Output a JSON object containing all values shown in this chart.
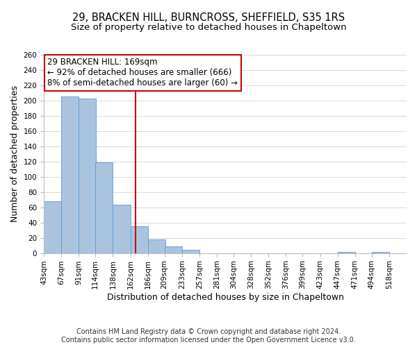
{
  "title": "29, BRACKEN HILL, BURNCROSS, SHEFFIELD, S35 1RS",
  "subtitle": "Size of property relative to detached houses in Chapeltown",
  "xlabel": "Distribution of detached houses by size in Chapeltown",
  "ylabel": "Number of detached properties",
  "bin_labels": [
    "43sqm",
    "67sqm",
    "91sqm",
    "114sqm",
    "138sqm",
    "162sqm",
    "186sqm",
    "209sqm",
    "233sqm",
    "257sqm",
    "281sqm",
    "304sqm",
    "328sqm",
    "352sqm",
    "376sqm",
    "399sqm",
    "423sqm",
    "447sqm",
    "471sqm",
    "494sqm",
    "518sqm"
  ],
  "bin_edges": [
    43,
    67,
    91,
    114,
    138,
    162,
    186,
    209,
    233,
    257,
    281,
    304,
    328,
    352,
    376,
    399,
    423,
    447,
    471,
    494,
    518
  ],
  "bar_heights": [
    68,
    205,
    203,
    119,
    63,
    35,
    18,
    9,
    4,
    0,
    0,
    0,
    0,
    0,
    0,
    0,
    0,
    1,
    0,
    1
  ],
  "bar_color": "#aac4e0",
  "bar_edge_color": "#5b9bd5",
  "vline_x": 169,
  "vline_color": "#cc0000",
  "ylim": [
    0,
    260
  ],
  "yticks": [
    0,
    20,
    40,
    60,
    80,
    100,
    120,
    140,
    160,
    180,
    200,
    220,
    240,
    260
  ],
  "annotation_title": "29 BRACKEN HILL: 169sqm",
  "annotation_line1": "← 92% of detached houses are smaller (666)",
  "annotation_line2": "8% of semi-detached houses are larger (60) →",
  "annotation_box_color": "#ffffff",
  "annotation_box_edge": "#cc0000",
  "footer1": "Contains HM Land Registry data © Crown copyright and database right 2024.",
  "footer2": "Contains public sector information licensed under the Open Government Licence v3.0.",
  "title_fontsize": 10.5,
  "subtitle_fontsize": 9.5,
  "axis_label_fontsize": 9,
  "tick_fontsize": 7.5,
  "annotation_fontsize": 8.5,
  "footer_fontsize": 7
}
